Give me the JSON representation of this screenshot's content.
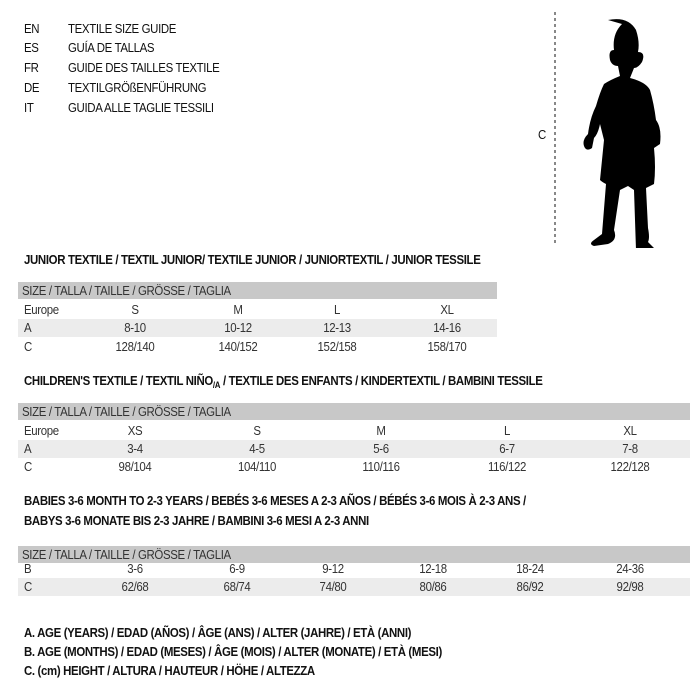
{
  "languages": [
    {
      "code": "EN",
      "title": "TEXTILE SIZE GUIDE"
    },
    {
      "code": "ES",
      "title": "GUÍA DE TALLAS"
    },
    {
      "code": "FR",
      "title": "GUIDE DES TAILLES TEXTILE"
    },
    {
      "code": "DE",
      "title": "TEXTILGRÖßENFÜHRUNG"
    },
    {
      "code": "IT",
      "title": "GUIDA ALLE TAGLIE TESSILI"
    }
  ],
  "figure": {
    "height_label": "C"
  },
  "size_header": "SIZE / TALLA / TAILLE / GRÖSSE / TAGLIA",
  "junior": {
    "title": "JUNIOR TEXTILE / TEXTIL JUNIOR/ TEXTILE JUNIOR / JUNIORTEXTIL / JUNIOR TESSILE",
    "rows": [
      {
        "label": "Europe",
        "values": [
          "S",
          "M",
          "L",
          "XL"
        ]
      },
      {
        "label": "A",
        "values": [
          "8-10",
          "10-12",
          "12-13",
          "14-16"
        ]
      },
      {
        "label": "C",
        "values": [
          "128/140",
          "140/152",
          "152/158",
          "158/170"
        ]
      }
    ]
  },
  "children": {
    "title_a": "CHILDREN'S TEXTILE / TEXTIL NIÑO",
    "title_sub": "/A",
    "title_b": " / TEXTILE DES ENFANTS / KINDERTEXTIL / BAMBINI TESSILE",
    "rows": [
      {
        "label": "Europe",
        "values": [
          "XS",
          "S",
          "M",
          "L",
          "XL"
        ]
      },
      {
        "label": "A",
        "values": [
          "3-4",
          "4-5",
          "5-6",
          "6-7",
          "7-8"
        ]
      },
      {
        "label": "C",
        "values": [
          "98/104",
          "104/110",
          "110/116",
          "116/122",
          "122/128"
        ]
      }
    ]
  },
  "babies": {
    "title_line1": "BABIES 3-6 MONTH TO 2-3 YEARS / BEBÉS 3-6 MESES A 2-3 AÑOS / BÉBÉS 3-6 MOIS À 2-3 ANS /",
    "title_line2": "BABYS 3-6 MONATE BIS 2-3 JAHRE / BAMBINI 3-6 MESI A 2-3 ANNI",
    "rows": [
      {
        "label": "B",
        "values": [
          "3-6",
          "6-9",
          "9-12",
          "12-18",
          "18-24",
          "24-36"
        ]
      },
      {
        "label": "C",
        "values": [
          "62/68",
          "68/74",
          "74/80",
          "80/86",
          "86/92",
          "92/98"
        ]
      }
    ]
  },
  "legend": [
    "A. AGE (YEARS) / EDAD (AÑOS) / ÂGE (ANS) / ALTER (JAHRE) / ETÀ (ANNI)",
    "B. AGE (MONTHS) / EDAD (MESES) / ÂGE (MOIS) / ALTER (MONATE) / ETÀ (MESI)",
    "C. (cm) HEIGHT / ALTURA / HAUTEUR / HÖHE / ALTEZZA"
  ],
  "colors": {
    "header_bar": "#c8c8c8",
    "row_band": "#ececec",
    "text": "#111111"
  }
}
